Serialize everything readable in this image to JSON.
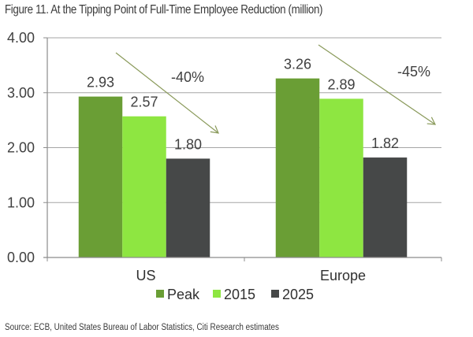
{
  "chart_data": {
    "type": "bar",
    "title": "Figure 11. At the Tipping Point of Full-Time Employee Reduction (million)",
    "xlabel": "",
    "ylabel": "",
    "categories": [
      "US",
      "Europe"
    ],
    "series": [
      {
        "name": "Peak",
        "values": [
          2.93,
          3.26
        ],
        "color": "#6a9e35"
      },
      {
        "name": "2015",
        "values": [
          2.57,
          2.89
        ],
        "color": "#8ee641"
      },
      {
        "name": "2025",
        "values": [
          1.8,
          1.82
        ],
        "color": "#464848"
      }
    ],
    "data_labels": [
      [
        "2.93",
        "3.26"
      ],
      [
        "2.57",
        "2.89"
      ],
      [
        "1.80",
        "1.82"
      ]
    ],
    "ylim": [
      0,
      4
    ],
    "yticks": [
      0,
      1,
      2,
      3,
      4
    ],
    "ytick_labels": [
      "0.00",
      "1.00",
      "2.00",
      "3.00",
      "4.00"
    ],
    "grid": true,
    "legend": {
      "placement": "bottom",
      "entries": [
        "Peak",
        "2015",
        "2025"
      ]
    },
    "annotations": [
      {
        "text": "-40%",
        "category": "US",
        "type": "arrow-down"
      },
      {
        "text": "-45%",
        "category": "Europe",
        "type": "arrow-down"
      }
    ],
    "source": "Source: ECB, United States Bureau of Labor Statistics, Citi Research estimates"
  },
  "colors": {
    "gridline": "#a6a6a6",
    "axis": "#8c8c8c",
    "arrow": "#8a9a5b"
  }
}
